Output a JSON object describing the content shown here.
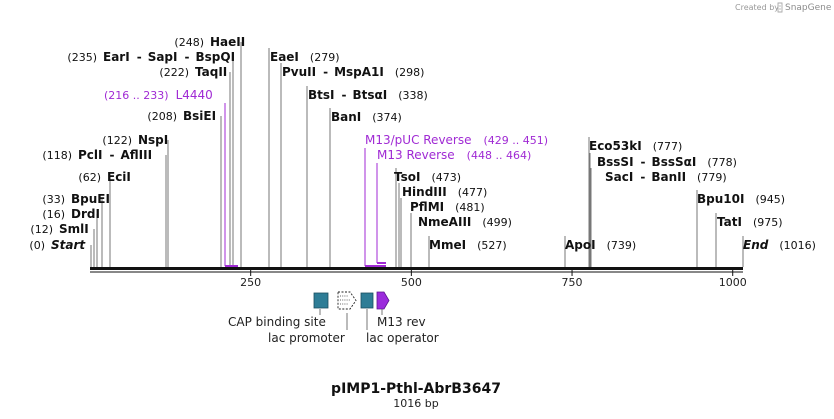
{
  "brand": {
    "created_by": "Created by",
    "name": "SnapGene"
  },
  "map": {
    "title": "pIMP1-Pthl-AbrB3647",
    "length_label": "1016 bp",
    "length": 1016,
    "ticks": [
      250,
      500,
      750,
      1000
    ],
    "tick_labels": [
      "250",
      "500",
      "750",
      "1000"
    ]
  },
  "sites": [
    {
      "id": "start",
      "pos_label": "(0)",
      "names": [
        "Start"
      ],
      "bp": 0,
      "italic": true
    },
    {
      "id": "smli",
      "pos_label": "(12)",
      "names": [
        "SmlI"
      ],
      "bp": 12
    },
    {
      "id": "drdi",
      "pos_label": "(16)",
      "names": [
        "DrdI"
      ],
      "bp": 16
    },
    {
      "id": "bpuei",
      "pos_label": "(33)",
      "names": [
        "BpuEI"
      ],
      "bp": 33
    },
    {
      "id": "ecii",
      "pos_label": "(62)",
      "names": [
        "EciI"
      ],
      "bp": 62
    },
    {
      "id": "pcli",
      "pos_label": "(118)",
      "names": [
        "PclI",
        "AflIII"
      ],
      "bp": 118
    },
    {
      "id": "nspi",
      "pos_label": "(122)",
      "names": [
        "NspI"
      ],
      "bp": 122
    },
    {
      "id": "bsiei",
      "pos_label": "(208)",
      "names": [
        "BsiEI"
      ],
      "bp": 208
    },
    {
      "id": "taqii",
      "pos_label": "(222)",
      "names": [
        "TaqII"
      ],
      "bp": 222
    },
    {
      "id": "eari",
      "pos_label": "(235)",
      "names": [
        "EarI",
        "SapI",
        "BspQI"
      ],
      "bp": 235
    },
    {
      "id": "haeii",
      "pos_label": "(248)",
      "names": [
        "HaeII"
      ],
      "bp": 248
    },
    {
      "id": "eaei",
      "pos_label": "(279)",
      "names": [
        "EaeI"
      ],
      "bp": 279
    },
    {
      "id": "pvuii",
      "pos_label": "(298)",
      "names": [
        "PvuII",
        "MspA1I"
      ],
      "bp": 298
    },
    {
      "id": "btsi",
      "pos_label": "(338)",
      "names": [
        "BtsI",
        "BtsαI"
      ],
      "bp": 338
    },
    {
      "id": "bani",
      "pos_label": "(374)",
      "names": [
        "BanI"
      ],
      "bp": 374
    },
    {
      "id": "tsoi",
      "pos_label": "(473)",
      "names": [
        "TsoI"
      ],
      "bp": 473
    },
    {
      "id": "hindiii",
      "pos_label": "(477)",
      "names": [
        "HindIII"
      ],
      "bp": 477
    },
    {
      "id": "pflmi",
      "pos_label": "(481)",
      "names": [
        "PflMI"
      ],
      "bp": 481
    },
    {
      "id": "nmeaiii",
      "pos_label": "(499)",
      "names": [
        "NmeAIII"
      ],
      "bp": 499
    },
    {
      "id": "mmei",
      "pos_label": "(527)",
      "names": [
        "MmeI"
      ],
      "bp": 527
    },
    {
      "id": "apoi",
      "pos_label": "(739)",
      "names": [
        "ApoI"
      ],
      "bp": 739
    },
    {
      "id": "eco53ki",
      "pos_label": "(777)",
      "names": [
        "Eco53kI"
      ],
      "bp": 777
    },
    {
      "id": "bsssi",
      "pos_label": "(778)",
      "names": [
        "BssSI",
        "BssSαI"
      ],
      "bp": 778
    },
    {
      "id": "saci",
      "pos_label": "(779)",
      "names": [
        "SacI",
        "BanII"
      ],
      "bp": 779
    },
    {
      "id": "bpu10i",
      "pos_label": "(945)",
      "names": [
        "Bpu10I"
      ],
      "bp": 945
    },
    {
      "id": "tati",
      "pos_label": "(975)",
      "names": [
        "TatI"
      ],
      "bp": 975
    },
    {
      "id": "end",
      "pos_label": "(1016)",
      "names": [
        "End"
      ],
      "bp": 1016,
      "italic": true
    }
  ],
  "primers": [
    {
      "id": "l4440",
      "name": "L4440",
      "range": "(216 .. 233)",
      "start": 216,
      "end": 233
    },
    {
      "id": "m13puc",
      "name": "M13/pUC Reverse",
      "range": "(429 .. 451)",
      "start": 429,
      "end": 451
    },
    {
      "id": "m13rev-primer",
      "name": "M13 Reverse",
      "range": "(448 .. 464)",
      "start": 448,
      "end": 464
    }
  ],
  "features": [
    {
      "id": "cap",
      "label": "CAP binding site",
      "color": "#2e7d96"
    },
    {
      "id": "lacp",
      "label": "lac promoter",
      "color": "#ffffff"
    },
    {
      "id": "laco",
      "label": "lac operator",
      "color": "#2e7d96"
    },
    {
      "id": "m13rev",
      "label": "M13 rev",
      "color": "#9b2bdc"
    }
  ],
  "colors": {
    "primer": "#a02ad4",
    "feature_box": "#2e7d96",
    "m13rev": "#9b2bdc"
  }
}
